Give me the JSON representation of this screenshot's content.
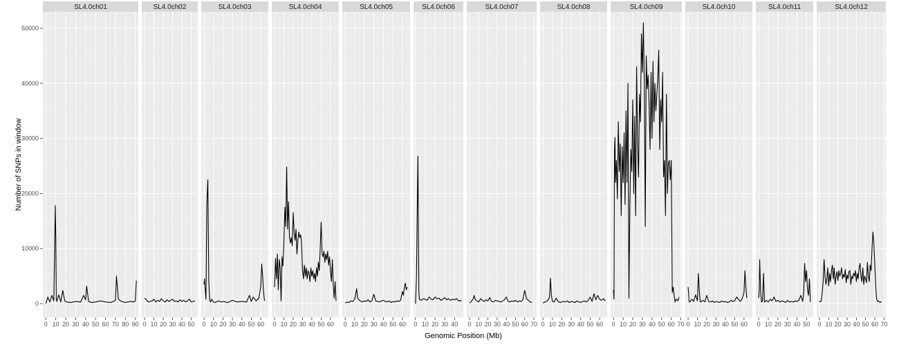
{
  "chart_data": {
    "type": "line",
    "title": "",
    "xlabel": "Genomic Position (Mb)",
    "ylabel": "Number of SNPs in window",
    "ylim": [
      -2500,
      53000
    ],
    "y_ticks": [
      0,
      10000,
      20000,
      30000,
      40000,
      50000
    ],
    "y_tick_labels": [
      "0",
      "10000",
      "20000",
      "30000",
      "40000",
      "50000"
    ],
    "grid": true,
    "legend": "none",
    "line_color": "#000000",
    "facets": [
      {
        "name": "SL4.0ch01",
        "xlim": [
          -3,
          93
        ],
        "x_ticks": [
          0,
          10,
          20,
          30,
          40,
          50,
          60,
          70,
          80,
          90
        ],
        "x": [
          0,
          2,
          4,
          6,
          8,
          9,
          9.5,
          10,
          10.5,
          11,
          13,
          15,
          17,
          19,
          21,
          25,
          30,
          35,
          38,
          40,
          41,
          43,
          46,
          50,
          55,
          60,
          65,
          68,
          70,
          71,
          73,
          76,
          80,
          85,
          88,
          90,
          91
        ],
        "values": [
          0,
          1200,
          300,
          1500,
          500,
          12000,
          17800,
          12000,
          800,
          400,
          1600,
          300,
          2400,
          500,
          300,
          200,
          400,
          300,
          1500,
          700,
          3200,
          400,
          200,
          300,
          500,
          300,
          200,
          400,
          600,
          5000,
          800,
          400,
          200,
          400,
          300,
          500,
          4200
        ]
      },
      {
        "name": "SL4.0ch02",
        "xlim": [
          -3,
          57
        ],
        "x_ticks": [
          0,
          10,
          20,
          30,
          40,
          50
        ],
        "x": [
          0,
          2,
          4,
          6,
          8,
          10,
          12,
          14,
          16,
          18,
          20,
          22,
          24,
          26,
          28,
          30,
          32,
          34,
          36,
          38,
          40,
          42,
          44,
          46,
          48,
          50,
          52,
          54
        ],
        "values": [
          1000,
          700,
          300,
          400,
          500,
          800,
          300,
          600,
          400,
          900,
          500,
          300,
          700,
          400,
          600,
          800,
          400,
          500,
          300,
          700,
          400,
          600,
          300,
          500,
          800,
          300,
          400,
          500
        ]
      },
      {
        "name": "SL4.0ch03",
        "xlim": [
          -3,
          68
        ],
        "x_ticks": [
          0,
          10,
          20,
          30,
          40,
          50,
          60
        ],
        "x": [
          0,
          0.5,
          1,
          2,
          3,
          4,
          5,
          6,
          7,
          8,
          10,
          12,
          15,
          18,
          20,
          25,
          30,
          35,
          40,
          45,
          48,
          50,
          52,
          55,
          58,
          60,
          61,
          62,
          63,
          64
        ],
        "values": [
          3500,
          4500,
          3000,
          800,
          18500,
          22500,
          4000,
          500,
          300,
          800,
          300,
          200,
          500,
          300,
          400,
          200,
          600,
          300,
          400,
          300,
          1500,
          400,
          1200,
          500,
          1000,
          3000,
          7200,
          5000,
          2000,
          500
        ]
      },
      {
        "name": "SL4.0ch04",
        "xlim": [
          -3,
          69
        ],
        "x_ticks": [
          0,
          10,
          20,
          30,
          40,
          50,
          60
        ],
        "x": [
          0,
          1,
          2,
          3,
          4,
          5,
          6,
          7,
          8,
          9,
          10,
          11,
          12,
          13,
          14,
          15,
          16,
          17,
          18,
          19,
          20,
          21,
          22,
          23,
          24,
          25,
          26,
          27,
          28,
          29,
          30,
          31,
          32,
          33,
          34,
          35,
          36,
          37,
          38,
          39,
          40,
          41,
          42,
          43,
          44,
          45,
          46,
          47,
          48,
          49,
          50,
          51,
          52,
          53,
          54,
          55,
          56,
          57,
          58,
          59,
          60,
          61,
          62,
          63,
          64,
          65,
          66
        ],
        "values": [
          3000,
          8200,
          4500,
          9000,
          2500,
          8000,
          6500,
          500,
          8500,
          6800,
          11000,
          17500,
          14000,
          24800,
          13500,
          18500,
          12000,
          11000,
          12000,
          10500,
          16500,
          13000,
          11500,
          13500,
          9000,
          11500,
          13000,
          12000,
          12500,
          11000,
          6000,
          4500,
          7000,
          5000,
          6500,
          4500,
          6000,
          5500,
          4000,
          6500,
          5000,
          6000,
          4500,
          5500,
          4000,
          6500,
          5000,
          7500,
          6000,
          10000,
          14800,
          9000,
          8500,
          9500,
          7500,
          9000,
          8000,
          9500,
          7000,
          8500,
          6000,
          4000,
          8000,
          3500,
          1000,
          4000,
          500
        ]
      },
      {
        "name": "SL4.0ch05",
        "xlim": [
          -3,
          68
        ],
        "x_ticks": [
          0,
          10,
          20,
          30,
          40,
          50,
          60
        ],
        "x": [
          0,
          2,
          4,
          6,
          8,
          10,
          12,
          13,
          15,
          18,
          20,
          22,
          24,
          26,
          28,
          30,
          32,
          34,
          36,
          38,
          40,
          42,
          44,
          46,
          48,
          50,
          52,
          54,
          56,
          58,
          60,
          61,
          62,
          63,
          64,
          65
        ],
        "values": [
          100,
          300,
          200,
          500,
          400,
          800,
          2700,
          1000,
          600,
          300,
          500,
          400,
          700,
          300,
          500,
          1700,
          500,
          400,
          300,
          500,
          600,
          400,
          300,
          500,
          200,
          400,
          300,
          500,
          400,
          600,
          2200,
          1500,
          3000,
          3700,
          2500,
          3000
        ]
      },
      {
        "name": "SL4.0ch06",
        "xlim": [
          -2,
          49
        ],
        "x_ticks": [
          0,
          10,
          20,
          30,
          40
        ],
        "x": [
          0,
          1,
          2,
          2.5,
          3,
          3.5,
          4,
          6,
          8,
          10,
          12,
          14,
          16,
          18,
          20,
          22,
          24,
          26,
          28,
          30,
          32,
          34,
          36,
          38,
          40,
          42,
          44,
          46,
          47
        ],
        "values": [
          0,
          5000,
          20000,
          26800,
          12000,
          2000,
          800,
          600,
          900,
          800,
          600,
          1200,
          800,
          700,
          1200,
          900,
          1000,
          600,
          800,
          1100,
          700,
          900,
          600,
          800,
          700,
          900,
          500,
          600,
          400
        ]
      },
      {
        "name": "SL4.0ch07",
        "xlim": [
          -3,
          73
        ],
        "x_ticks": [
          0,
          10,
          20,
          30,
          40,
          50,
          60,
          70
        ],
        "x": [
          0,
          2,
          4,
          5,
          6,
          8,
          10,
          12,
          14,
          16,
          18,
          20,
          22,
          24,
          26,
          28,
          30,
          32,
          34,
          36,
          38,
          40,
          42,
          44,
          46,
          48,
          50,
          52,
          54,
          56,
          58,
          60,
          62,
          64,
          66,
          68
        ],
        "values": [
          100,
          400,
          900,
          1500,
          800,
          500,
          300,
          900,
          600,
          400,
          700,
          500,
          1100,
          400,
          300,
          600,
          500,
          400,
          300,
          500,
          700,
          1200,
          400,
          300,
          500,
          400,
          600,
          300,
          500,
          400,
          700,
          2400,
          900,
          600,
          300,
          200
        ]
      },
      {
        "name": "SL4.0ch08",
        "xlim": [
          -3,
          68
        ],
        "x_ticks": [
          0,
          10,
          20,
          30,
          40,
          50,
          60
        ],
        "x": [
          0,
          2,
          4,
          6,
          7,
          8,
          9,
          10,
          12,
          14,
          16,
          18,
          20,
          22,
          24,
          26,
          28,
          30,
          32,
          34,
          36,
          38,
          40,
          42,
          44,
          46,
          48,
          50,
          52,
          54,
          56,
          58,
          60,
          62,
          64,
          66
        ],
        "values": [
          100,
          300,
          400,
          800,
          1200,
          4600,
          1500,
          400,
          300,
          1000,
          400,
          200,
          300,
          400,
          300,
          500,
          200,
          400,
          300,
          200,
          500,
          300,
          200,
          400,
          500,
          300,
          600,
          1200,
          400,
          1800,
          700,
          1500,
          800,
          600,
          900,
          500
        ]
      },
      {
        "name": "SL4.0ch09",
        "xlim": [
          -3,
          71
        ],
        "x_ticks": [
          0,
          10,
          20,
          30,
          40,
          50,
          60,
          70
        ],
        "x": [
          0,
          0.5,
          1,
          1.5,
          2,
          3,
          4,
          5,
          6,
          7,
          8,
          9,
          10,
          11,
          12,
          13,
          14,
          15,
          16,
          17,
          18,
          19,
          20,
          21,
          22,
          23,
          24,
          25,
          26,
          27,
          28,
          29,
          30,
          31,
          32,
          33,
          34,
          35,
          36,
          37,
          38,
          39,
          40,
          41,
          42,
          43,
          44,
          45,
          46,
          47,
          48,
          49,
          50,
          51,
          52,
          53,
          54,
          55,
          56,
          57,
          58,
          59,
          60,
          61,
          62,
          63,
          64,
          65,
          66,
          67,
          68
        ],
        "values": [
          2500,
          800,
          28000,
          30200,
          22000,
          26000,
          19000,
          33000,
          24000,
          29000,
          16000,
          28500,
          22000,
          31000,
          18000,
          35000,
          22000,
          40000,
          1000,
          18000,
          28000,
          24000,
          37000,
          20000,
          34000,
          16000,
          43000,
          29000,
          23000,
          38000,
          33000,
          49000,
          42000,
          51000,
          40000,
          14000,
          45000,
          39000,
          41500,
          36000,
          28000,
          42000,
          30000,
          44000,
          33000,
          40000,
          35000,
          38000,
          41000,
          46000,
          28000,
          37000,
          33000,
          42000,
          23000,
          26000,
          16000,
          38000,
          20000,
          25500,
          26000,
          22500,
          26000,
          2000,
          3000,
          1500,
          300,
          800,
          700,
          500,
          1200
        ]
      },
      {
        "name": "SL4.0ch10",
        "xlim": [
          -3,
          69
        ],
        "x_ticks": [
          0,
          10,
          20,
          30,
          40,
          50,
          60
        ],
        "x": [
          0,
          0.5,
          1,
          2,
          4,
          6,
          8,
          10,
          11,
          12,
          13,
          14,
          16,
          18,
          20,
          22,
          24,
          26,
          28,
          30,
          32,
          34,
          36,
          38,
          40,
          42,
          44,
          46,
          48,
          50,
          52,
          54,
          56,
          58,
          60,
          61,
          62,
          63
        ],
        "values": [
          3000,
          2000,
          400,
          300,
          800,
          400,
          1600,
          500,
          5500,
          2500,
          300,
          400,
          600,
          300,
          1500,
          400,
          300,
          500,
          200,
          400,
          300,
          200,
          500,
          300,
          400,
          200,
          300,
          600,
          400,
          500,
          1200,
          800,
          400,
          900,
          2000,
          6000,
          3000,
          1000
        ]
      },
      {
        "name": "SL4.0ch11",
        "xlim": [
          -3,
          57
        ],
        "x_ticks": [
          0,
          10,
          20,
          30,
          40,
          50
        ],
        "x": [
          0,
          0.5,
          1,
          2,
          3,
          4,
          5,
          6,
          7,
          8,
          10,
          12,
          14,
          16,
          18,
          20,
          22,
          24,
          26,
          28,
          30,
          32,
          34,
          36,
          38,
          40,
          42,
          44,
          46,
          47,
          48,
          49,
          50,
          51,
          52,
          53,
          54
        ],
        "values": [
          1000,
          2500,
          8000,
          2000,
          300,
          500,
          5500,
          300,
          400,
          600,
          300,
          800,
          500,
          1200,
          400,
          600,
          300,
          500,
          400,
          200,
          600,
          300,
          400,
          300,
          500,
          400,
          600,
          1500,
          400,
          2000,
          7300,
          4000,
          6000,
          2500,
          1500,
          4500,
          300
        ]
      },
      {
        "name": "SL4.0ch12",
        "xlim": [
          -3,
          72
        ],
        "x_ticks": [
          0,
          10,
          20,
          30,
          40,
          50,
          60,
          70
        ],
        "x": [
          0,
          1,
          2,
          3,
          4,
          5,
          6,
          7,
          8,
          9,
          10,
          11,
          12,
          13,
          14,
          15,
          16,
          17,
          18,
          19,
          20,
          21,
          22,
          23,
          24,
          25,
          26,
          27,
          28,
          29,
          30,
          31,
          32,
          33,
          34,
          35,
          36,
          37,
          38,
          39,
          40,
          41,
          42,
          43,
          44,
          45,
          46,
          47,
          48,
          49,
          50,
          51,
          52,
          53,
          54,
          55,
          56,
          57,
          58,
          59,
          60,
          61,
          62,
          63,
          64,
          65,
          66,
          67
        ],
        "values": [
          500,
          300,
          600,
          2000,
          4000,
          8000,
          5000,
          3500,
          4500,
          6500,
          3200,
          5500,
          4000,
          6000,
          7000,
          4500,
          6500,
          3500,
          5000,
          5800,
          4200,
          6000,
          5000,
          5500,
          6500,
          4500,
          5300,
          4800,
          6200,
          3800,
          5200,
          4500,
          5800,
          6000,
          3500,
          5000,
          4500,
          5500,
          5000,
          6000,
          4000,
          5500,
          4500,
          6500,
          7300,
          5000,
          4000,
          6500,
          3500,
          5000,
          4500,
          3800,
          7500,
          5000,
          4000,
          7000,
          6000,
          10000,
          13000,
          11000,
          7000,
          3000,
          800,
          400,
          500,
          300,
          200,
          400
        ]
      }
    ]
  }
}
